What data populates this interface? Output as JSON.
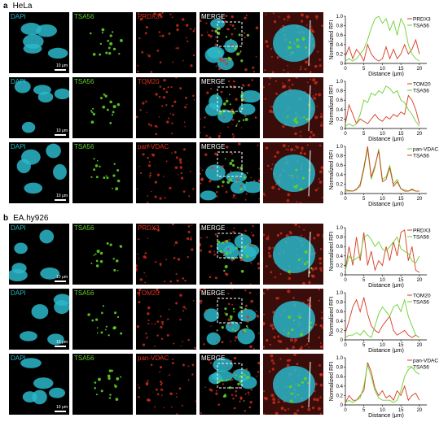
{
  "sections": [
    {
      "letter": "a",
      "cell_line": "HeLa",
      "rows": [
        {
          "labels": [
            "DAPI",
            "TSA56",
            "PRDX3",
            "MERGE"
          ],
          "scale": "10 μm"
        },
        {
          "labels": [
            "DAPI",
            "TSA56",
            "TOM20",
            "MERGE"
          ],
          "scale": "10 μm"
        },
        {
          "labels": [
            "DAPI",
            "TSA56",
            "pan-VDAC",
            "MERGE"
          ],
          "scale": "10 μm"
        }
      ]
    },
    {
      "letter": "b",
      "cell_line": "EA.hy926",
      "rows": [
        {
          "labels": [
            "DAPI",
            "TSA56",
            "PRDX3",
            "MERGE"
          ],
          "scale": "10 μm"
        },
        {
          "labels": [
            "DAPI",
            "TSA56",
            "TOM20",
            "MERGE"
          ],
          "scale": "10 μm"
        },
        {
          "labels": [
            "DAPI",
            "TSA56",
            "pan-VDAC",
            "MERGE"
          ],
          "scale": "10 μm"
        }
      ]
    }
  ],
  "colors": {
    "dapi": "#2ab7c9",
    "tsa56": "#5fd028",
    "red": "#e0321e",
    "merge": "#ffffff"
  },
  "chart_data": [
    {
      "type": "line",
      "xlabel": "Distance (μm)",
      "ylabel": "Normalized RFI",
      "xlim": [
        0,
        22
      ],
      "ylim": [
        0,
        1.0
      ],
      "xticks": [
        0,
        5,
        10,
        15,
        20
      ],
      "yticks": [
        0,
        0.2,
        0.4,
        0.6,
        0.8,
        1.0
      ],
      "legend": "top-right",
      "series": [
        {
          "name": "PRDX3",
          "color": "#d83a1e",
          "x": [
            0,
            1,
            2,
            3,
            4,
            5,
            6,
            7,
            8,
            9,
            10,
            11,
            12,
            13,
            14,
            15,
            16,
            17,
            18,
            19,
            20
          ],
          "y": [
            0.15,
            0.35,
            0.1,
            0.3,
            0.2,
            0.05,
            0.4,
            0.2,
            0.1,
            0.05,
            0.1,
            0.35,
            0.1,
            0.3,
            0.1,
            0.2,
            0.4,
            0.2,
            0.3,
            0.5,
            0.2
          ]
        },
        {
          "name": "TSA56",
          "color": "#6ad12c",
          "x": [
            0,
            1,
            2,
            3,
            4,
            5,
            6,
            7,
            8,
            9,
            10,
            11,
            12,
            13,
            14,
            15,
            16,
            17,
            18,
            19,
            20
          ],
          "y": [
            0.05,
            0.1,
            0.05,
            0.1,
            0.2,
            0.3,
            0.5,
            0.75,
            0.95,
            1.0,
            0.85,
            0.95,
            0.7,
            0.9,
            0.6,
            0.95,
            0.8,
            0.4,
            0.2,
            0.1,
            0.05
          ]
        }
      ]
    },
    {
      "type": "line",
      "xlabel": "Distance (μm)",
      "ylabel": "Normalized RFI",
      "xlim": [
        0,
        22
      ],
      "ylim": [
        0,
        1.0
      ],
      "xticks": [
        0,
        5,
        10,
        15,
        20
      ],
      "yticks": [
        0,
        0.2,
        0.4,
        0.6,
        0.8,
        1.0
      ],
      "legend": "top-right",
      "series": [
        {
          "name": "TOM20",
          "color": "#d83a1e",
          "x": [
            0,
            1,
            2,
            3,
            4,
            5,
            6,
            7,
            8,
            9,
            10,
            11,
            12,
            13,
            14,
            15,
            16,
            17,
            18,
            19,
            20
          ],
          "y": [
            0.1,
            0.5,
            0.3,
            0.1,
            0.2,
            0.15,
            0.1,
            0.2,
            0.3,
            0.2,
            0.15,
            0.25,
            0.2,
            0.3,
            0.25,
            0.35,
            0.3,
            0.7,
            0.6,
            0.4,
            0.1
          ]
        },
        {
          "name": "TSA56",
          "color": "#6ad12c",
          "x": [
            0,
            1,
            2,
            3,
            4,
            5,
            6,
            7,
            8,
            9,
            10,
            11,
            12,
            13,
            14,
            15,
            16,
            17,
            18,
            19,
            20
          ],
          "y": [
            0.05,
            0.1,
            0.05,
            0.1,
            0.3,
            0.6,
            0.55,
            0.75,
            0.7,
            0.8,
            0.75,
            0.9,
            0.85,
            0.75,
            0.8,
            0.6,
            0.55,
            0.4,
            0.3,
            0.15,
            0.05
          ]
        }
      ]
    },
    {
      "type": "line",
      "xlabel": "Distance (μm)",
      "ylabel": "Normalized RFI",
      "xlim": [
        0,
        22
      ],
      "ylim": [
        0,
        1.0
      ],
      "xticks": [
        0,
        5,
        10,
        15,
        20
      ],
      "yticks": [
        0,
        0.2,
        0.4,
        0.6,
        0.8,
        1.0
      ],
      "legend": "top-right",
      "series": [
        {
          "name": "pan-VDAC",
          "color": "#6ad12c",
          "x": [
            0,
            1,
            2,
            3,
            4,
            5,
            6,
            7,
            8,
            9,
            10,
            11,
            12,
            13,
            14,
            15,
            16,
            17,
            18,
            19,
            20
          ],
          "y": [
            0.05,
            0.05,
            0.05,
            0.1,
            0.15,
            0.5,
            0.95,
            0.3,
            0.55,
            0.95,
            0.3,
            0.35,
            0.6,
            0.2,
            0.3,
            0.1,
            0.08,
            0.05,
            0.1,
            0.05,
            0.05
          ]
        },
        {
          "name": "TSA56",
          "color": "#d83a1e",
          "x": [
            0,
            1,
            2,
            3,
            4,
            5,
            6,
            7,
            8,
            9,
            10,
            11,
            12,
            13,
            14,
            15,
            16,
            17,
            18,
            19,
            20
          ],
          "y": [
            0.08,
            0.06,
            0.05,
            0.08,
            0.2,
            0.55,
            1.0,
            0.35,
            0.6,
            0.9,
            0.25,
            0.3,
            0.55,
            0.15,
            0.25,
            0.1,
            0.05,
            0.05,
            0.08,
            0.05,
            0.05
          ]
        }
      ]
    },
    {
      "type": "line",
      "xlabel": "Distance (μm)",
      "ylabel": "Normalized RFI",
      "xlim": [
        0,
        22
      ],
      "ylim": [
        0,
        1.0
      ],
      "xticks": [
        0,
        5,
        10,
        15,
        20
      ],
      "yticks": [
        0,
        0.2,
        0.4,
        0.6,
        0.8,
        1.0
      ],
      "legend": "top-right",
      "series": [
        {
          "name": "PRDX3",
          "color": "#d83a1e",
          "x": [
            0,
            1,
            2,
            3,
            4,
            5,
            6,
            7,
            8,
            9,
            10,
            11,
            12,
            13,
            14,
            15,
            16,
            17,
            18,
            19,
            20
          ],
          "y": [
            0.1,
            0.6,
            0.2,
            0.8,
            0.3,
            0.9,
            0.2,
            0.5,
            0.1,
            0.3,
            0.2,
            0.6,
            0.3,
            0.7,
            0.4,
            0.9,
            0.95,
            0.3,
            0.6,
            0.1,
            0.05
          ]
        },
        {
          "name": "TSA56",
          "color": "#6ad12c",
          "x": [
            0,
            1,
            2,
            3,
            4,
            5,
            6,
            7,
            8,
            9,
            10,
            11,
            12,
            13,
            14,
            15,
            16,
            17,
            18,
            19,
            20
          ],
          "y": [
            0.1,
            0.4,
            0.3,
            0.35,
            0.4,
            0.8,
            0.85,
            0.75,
            0.6,
            0.7,
            0.55,
            0.5,
            0.6,
            0.7,
            0.8,
            0.55,
            0.5,
            0.45,
            0.3,
            0.25,
            0.4
          ]
        }
      ]
    },
    {
      "type": "line",
      "xlabel": "Distance (μm)",
      "ylabel": "Normalized RFI",
      "xlim": [
        0,
        22
      ],
      "ylim": [
        0,
        1.0
      ],
      "xticks": [
        0,
        5,
        10,
        15,
        20
      ],
      "yticks": [
        0,
        0.2,
        0.4,
        0.6,
        0.8,
        1.0
      ],
      "legend": "top-right",
      "series": [
        {
          "name": "TOM20",
          "color": "#d83a1e",
          "x": [
            0,
            1,
            2,
            3,
            4,
            5,
            6,
            7,
            8,
            9,
            10,
            11,
            12,
            13,
            14,
            15,
            16,
            17,
            18,
            19,
            20
          ],
          "y": [
            0.15,
            0.4,
            0.7,
            0.85,
            0.6,
            0.9,
            0.55,
            0.3,
            0.2,
            0.15,
            0.3,
            0.4,
            0.5,
            0.2,
            0.1,
            0.15,
            0.2,
            0.1,
            0.05,
            0.1,
            0.05
          ]
        },
        {
          "name": "TSA56",
          "color": "#6ad12c",
          "x": [
            0,
            1,
            2,
            3,
            4,
            5,
            6,
            7,
            8,
            9,
            10,
            11,
            12,
            13,
            14,
            15,
            16,
            17,
            18,
            19,
            20
          ],
          "y": [
            0.05,
            0.1,
            0.1,
            0.15,
            0.1,
            0.2,
            0.1,
            0.05,
            0.3,
            0.55,
            0.7,
            0.6,
            0.5,
            0.7,
            0.75,
            0.6,
            0.85,
            0.5,
            0.3,
            0.1,
            0.05
          ]
        }
      ]
    },
    {
      "type": "line",
      "xlabel": "Distance (μm)",
      "ylabel": "Normalized RFI",
      "xlim": [
        0,
        22
      ],
      "ylim": [
        0,
        1.0
      ],
      "xticks": [
        0,
        5,
        10,
        15,
        20
      ],
      "yticks": [
        0,
        0.2,
        0.4,
        0.6,
        0.8,
        1.0
      ],
      "legend": "top-right",
      "series": [
        {
          "name": "pan-VDAC",
          "color": "#d83a1e",
          "x": [
            0,
            1,
            2,
            3,
            4,
            5,
            6,
            7,
            8,
            9,
            10,
            11,
            12,
            13,
            14,
            15,
            16,
            17,
            18,
            19,
            20
          ],
          "y": [
            0.05,
            0.2,
            0.1,
            0.1,
            0.2,
            0.3,
            0.9,
            0.7,
            0.35,
            0.2,
            0.3,
            0.15,
            0.2,
            0.1,
            0.3,
            0.2,
            0.4,
            0.1,
            0.2,
            0.25,
            0.1
          ]
        },
        {
          "name": "TSA56",
          "color": "#6ad12c",
          "x": [
            0,
            1,
            2,
            3,
            4,
            5,
            6,
            7,
            8,
            9,
            10,
            11,
            12,
            13,
            14,
            15,
            16,
            17,
            18,
            19,
            20
          ],
          "y": [
            0.05,
            0.1,
            0.05,
            0.1,
            0.15,
            0.4,
            0.85,
            0.6,
            0.3,
            0.15,
            0.1,
            0.1,
            0.1,
            0.05,
            0.1,
            0.3,
            0.6,
            0.75,
            0.8,
            0.7,
            0.65
          ]
        }
      ]
    }
  ]
}
